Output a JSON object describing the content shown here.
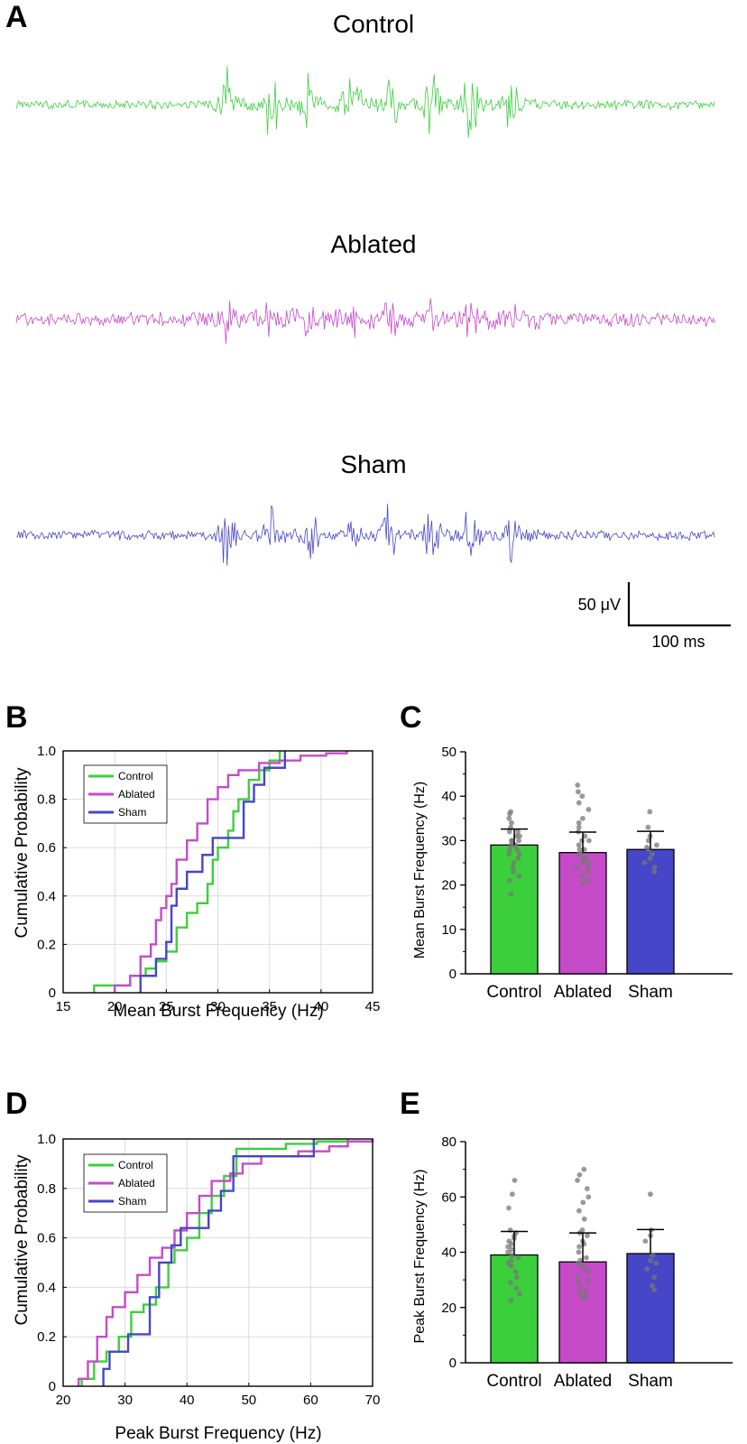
{
  "panels": {
    "a": "A",
    "b": "B",
    "c": "C",
    "d": "D",
    "e": "E"
  },
  "colors": {
    "control": "#3ccf3c",
    "ablated": "#c54bc8",
    "sham": "#4646c8"
  },
  "chart_data": [
    {
      "panel": "A",
      "type": "line",
      "traces": [
        {
          "name": "Control",
          "color": "#3ccf3c",
          "bursts": 8
        },
        {
          "name": "Ablated",
          "color": "#c54bc8",
          "bursts": 8
        },
        {
          "name": "Sham",
          "color": "#4646c8",
          "bursts": 8
        }
      ],
      "scale_bar": {
        "y_label": "50 μV",
        "x_label": "100 ms"
      }
    },
    {
      "panel": "B",
      "type": "line",
      "xlabel": "Mean Burst Frequency (Hz)",
      "ylabel": "Cumulative Probability",
      "xlim": [
        15,
        45
      ],
      "ylim": [
        0,
        1
      ],
      "xticks": [
        15,
        20,
        25,
        30,
        35,
        40,
        45
      ],
      "yticks": [
        0,
        0.2,
        0.4,
        0.6,
        0.8,
        1.0
      ],
      "ytick_labels": [
        "0",
        "0.2",
        "0.4",
        "0.6",
        "0.8",
        "1.0"
      ],
      "grid": true,
      "legend_position": "top-left",
      "series": [
        {
          "name": "Control",
          "color": "#3ccf3c",
          "x": [
            18,
            21.5,
            23,
            24,
            25,
            26,
            27,
            28,
            29,
            29.5,
            30,
            31,
            31.5,
            32,
            33,
            34,
            35,
            36
          ],
          "y": [
            0.03,
            0.07,
            0.1,
            0.13,
            0.17,
            0.27,
            0.33,
            0.37,
            0.45,
            0.55,
            0.6,
            0.67,
            0.75,
            0.8,
            0.88,
            0.92,
            0.96,
            1.0
          ]
        },
        {
          "name": "Ablated",
          "color": "#c54bc8",
          "x": [
            20,
            21.5,
            22.5,
            23.5,
            24,
            24.5,
            25,
            25.5,
            26,
            27,
            28,
            29,
            30,
            31,
            32,
            34,
            36,
            38,
            40.5,
            42.5
          ],
          "y": [
            0.03,
            0.07,
            0.15,
            0.2,
            0.3,
            0.35,
            0.4,
            0.45,
            0.55,
            0.63,
            0.7,
            0.8,
            0.85,
            0.9,
            0.92,
            0.95,
            0.96,
            0.98,
            0.99,
            1.0
          ]
        },
        {
          "name": "Sham",
          "color": "#4646c8",
          "x": [
            22.5,
            24,
            25,
            25.5,
            26,
            27,
            28.5,
            29.5,
            32.5,
            33.5,
            34.5,
            36.5
          ],
          "y": [
            0.07,
            0.14,
            0.21,
            0.36,
            0.43,
            0.5,
            0.57,
            0.64,
            0.79,
            0.86,
            0.93,
            1.0
          ]
        }
      ]
    },
    {
      "panel": "C",
      "type": "bar",
      "ylabel": "Mean Burst Frequency (Hz)",
      "ylim": [
        0,
        50
      ],
      "yticks": [
        0,
        10,
        20,
        30,
        40,
        50
      ],
      "categories": [
        "Control",
        "Ablated",
        "Sham"
      ],
      "values": [
        29,
        27.3,
        28
      ],
      "errors": [
        3.6,
        4.6,
        4.1
      ],
      "colors": [
        "#3ccf3c",
        "#c54bc8",
        "#4646c8"
      ],
      "points": [
        [
          18,
          21,
          22,
          23,
          24,
          25,
          26,
          27,
          27,
          28,
          28,
          29,
          29,
          29,
          30,
          30,
          30,
          31,
          31,
          32,
          32,
          33,
          34,
          35,
          36,
          36.5
        ],
        [
          20.5,
          21,
          22,
          23,
          24,
          24,
          25,
          25,
          26,
          26,
          27,
          27,
          28,
          28,
          29,
          30,
          30,
          31,
          32,
          33,
          34,
          35,
          37,
          38.5,
          40,
          41,
          42.5
        ],
        [
          23,
          24,
          25,
          26,
          27,
          28,
          28.5,
          29,
          30,
          31,
          33,
          36.5
        ]
      ]
    },
    {
      "panel": "D",
      "type": "line",
      "xlabel": "Peak Burst Frequency (Hz)",
      "ylabel": "Cumulative Probability",
      "xlim": [
        20,
        70
      ],
      "ylim": [
        0,
        1
      ],
      "xticks": [
        20,
        30,
        40,
        50,
        60,
        70
      ],
      "yticks": [
        0,
        0.2,
        0.4,
        0.6,
        0.8,
        1.0
      ],
      "ytick_labels": [
        "0",
        "0.2",
        "0.4",
        "0.6",
        "0.8",
        "1.0"
      ],
      "grid": true,
      "legend_position": "top-left",
      "series": [
        {
          "name": "Control",
          "color": "#3ccf3c",
          "x": [
            23,
            25,
            27,
            29,
            31,
            33,
            35,
            37,
            38,
            40,
            42,
            44,
            46,
            48,
            56,
            61,
            66
          ],
          "y": [
            0.03,
            0.1,
            0.14,
            0.2,
            0.3,
            0.33,
            0.4,
            0.5,
            0.55,
            0.6,
            0.7,
            0.77,
            0.85,
            0.96,
            0.98,
            0.99,
            1.0
          ]
        },
        {
          "name": "Ablated",
          "color": "#c54bc8",
          "x": [
            22.5,
            24,
            25.5,
            27,
            28,
            30,
            32,
            34,
            36,
            38,
            40,
            42,
            44,
            47,
            49,
            52,
            58,
            63,
            66,
            70
          ],
          "y": [
            0.03,
            0.1,
            0.2,
            0.28,
            0.32,
            0.38,
            0.45,
            0.52,
            0.56,
            0.63,
            0.7,
            0.77,
            0.83,
            0.86,
            0.9,
            0.93,
            0.95,
            0.97,
            0.99,
            1.0
          ]
        },
        {
          "name": "Sham",
          "color": "#4646c8",
          "x": [
            26.5,
            27.5,
            30.5,
            34,
            35.5,
            37.5,
            39,
            43.5,
            45.5,
            47.5,
            60.5
          ],
          "y": [
            0.07,
            0.14,
            0.21,
            0.36,
            0.5,
            0.57,
            0.64,
            0.71,
            0.79,
            0.93,
            1.0
          ]
        }
      ]
    },
    {
      "panel": "E",
      "type": "bar",
      "ylabel": "Peak Burst Frequency (Hz)",
      "ylim": [
        0,
        80
      ],
      "yticks": [
        0,
        20,
        40,
        60,
        80
      ],
      "categories": [
        "Control",
        "Ablated",
        "Sham"
      ],
      "values": [
        39,
        36.5,
        39.5
      ],
      "errors": [
        8.5,
        10.5,
        8.7
      ],
      "colors": [
        "#3ccf3c",
        "#c54bc8",
        "#4646c8"
      ],
      "points": [
        [
          22.5,
          25,
          27,
          29,
          31,
          33,
          35,
          36,
          37,
          38,
          39,
          40,
          41,
          42,
          43,
          44,
          45,
          46,
          47,
          48,
          56,
          61,
          66
        ],
        [
          23.5,
          24,
          25,
          26,
          27,
          29,
          30,
          31,
          33,
          34,
          35,
          36,
          37,
          38,
          40,
          42,
          43,
          44,
          46,
          47,
          48,
          52,
          55,
          58,
          60,
          63,
          66,
          68,
          70
        ],
        [
          26.5,
          28,
          31,
          34,
          36,
          37,
          39,
          44,
          46,
          48,
          61
        ]
      ]
    }
  ]
}
